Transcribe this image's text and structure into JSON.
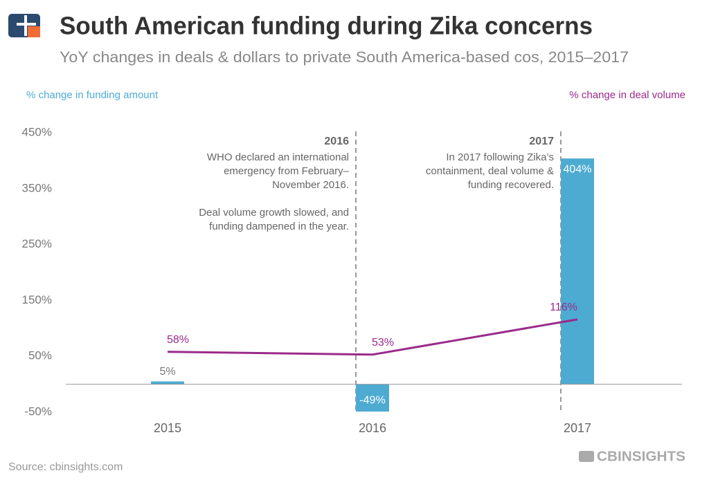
{
  "header": {
    "title": "South American funding during Zika concerns",
    "subtitle": "YoY changes in deals & dollars to private South America-based cos, 2015–2017"
  },
  "chart_data": {
    "type": "combo",
    "categories": [
      "2015",
      "2016",
      "2017"
    ],
    "series": [
      {
        "name": "% change in funding amount",
        "type": "bar",
        "color": "#4dabd2",
        "values": [
          5,
          -49,
          404
        ],
        "value_labels": [
          "5%",
          "-49%",
          "404%"
        ]
      },
      {
        "name": "% change in deal volume",
        "type": "line",
        "color": "#9b2a8a",
        "values": [
          58,
          53,
          116
        ],
        "value_labels": [
          "58%",
          "53%",
          "116%"
        ]
      }
    ],
    "ylim": [
      -50,
      450
    ],
    "yticks": [
      {
        "value": -50,
        "label": "-50%"
      },
      {
        "value": 50,
        "label": "50%"
      },
      {
        "value": 150,
        "label": "150%"
      },
      {
        "value": 250,
        "label": "250%"
      },
      {
        "value": 350,
        "label": "350%"
      },
      {
        "value": 450,
        "label": "450%"
      }
    ],
    "grid": false,
    "annotations": [
      {
        "title": "2016",
        "paragraphs": [
          [
            "WHO declared an international",
            "emergency from February–",
            "November 2016."
          ],
          [
            "Deal volume growth slowed, and",
            "funding dampened in the year."
          ]
        ]
      },
      {
        "title": "2017",
        "paragraphs": [
          [
            "In 2017 following Zika’s",
            "containment, deal volume &",
            "funding recovered."
          ]
        ]
      }
    ]
  },
  "footer": {
    "source": "Source: cbinsights.com",
    "logo": "CBINSIGHTS"
  }
}
